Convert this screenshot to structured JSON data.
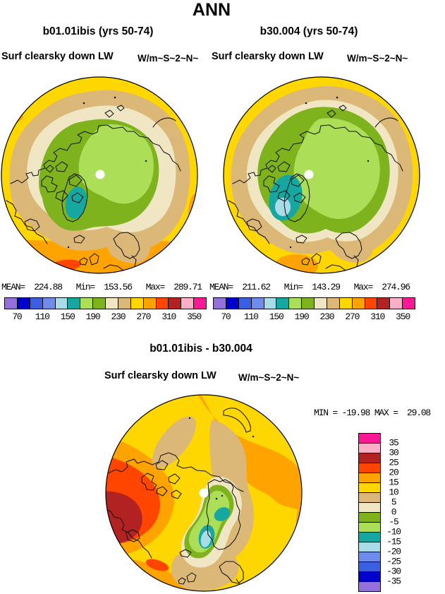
{
  "page_title": "ANN",
  "panels": {
    "left": {
      "title": "b01.01ibis (yrs 50-74)",
      "field": "Surf clearsky down LW",
      "units": "W/m~S~2~N~",
      "stats": "MEAN=  224.88   Min=  153.56   Max=  289.71"
    },
    "right": {
      "title": "b30.004 (yrs 50-74)",
      "field": "Surf clearsky down LW",
      "units": "W/m~S~2~N~",
      "stats": "MEAN=  211.62   Min=  143.29   Max=  274.96"
    },
    "diff": {
      "title": "b01.01ibis - b30.004",
      "field": "Surf clearsky down LW",
      "units": "W/m~S~2~N~",
      "minmax": "MIN = -19.98 MAX =  29.08"
    }
  },
  "colorbar": {
    "colors_low_to_high": [
      "#9470DB",
      "#0000CD",
      "#3A5FE0",
      "#6E8CEC",
      "#A8DCE8",
      "#16A8A0",
      "#ACDE58",
      "#7FB31E",
      "#F0E6C4",
      "#DBB878",
      "#FFD700",
      "#FFA300",
      "#FF4500",
      "#B22222",
      "#FFAEC8",
      "#FA1895"
    ],
    "h_tick_labels": [
      "70",
      "110",
      "150",
      "190",
      "230",
      "270",
      "310",
      "350"
    ],
    "v_tick_labels": [
      "35",
      "30",
      "25",
      "20",
      "15",
      "10",
      "5",
      "0",
      "-5",
      "-10",
      "-15",
      "-20",
      "-25",
      "-30",
      "-35"
    ]
  },
  "chart_data": [
    {
      "type": "heatmap",
      "variant": "north-polar-stereographic filled-contour map",
      "season": "ANN",
      "title": "b01.01ibis (yrs 50-74)",
      "variable": "Surf clearsky down LW",
      "units": "W/m~S~2~N~",
      "mean": 224.88,
      "min": 153.56,
      "max": 289.71,
      "contour_levels": [
        70,
        90,
        110,
        130,
        150,
        170,
        190,
        210,
        230,
        250,
        270,
        290,
        310,
        330,
        350
      ],
      "labeled_levels": [
        70,
        110,
        150,
        190,
        230,
        270,
        310,
        350
      ],
      "palette_low_to_high": [
        "#9470DB",
        "#0000CD",
        "#3A5FE0",
        "#6E8CEC",
        "#A8DCE8",
        "#16A8A0",
        "#ACDE58",
        "#7FB31E",
        "#F0E6C4",
        "#DBB878",
        "#FFD700",
        "#FFA300",
        "#FF4500",
        "#B22222",
        "#FFAEC8",
        "#FA1895"
      ],
      "legend_position": "bottom-horizontal"
    },
    {
      "type": "heatmap",
      "variant": "north-polar-stereographic filled-contour map",
      "season": "ANN",
      "title": "b30.004 (yrs 50-74)",
      "variable": "Surf clearsky down LW",
      "units": "W/m~S~2~N~",
      "mean": 211.62,
      "min": 143.29,
      "max": 274.96,
      "contour_levels": [
        70,
        90,
        110,
        130,
        150,
        170,
        190,
        210,
        230,
        250,
        270,
        290,
        310,
        330,
        350
      ],
      "labeled_levels": [
        70,
        110,
        150,
        190,
        230,
        270,
        310,
        350
      ],
      "palette_low_to_high": [
        "#9470DB",
        "#0000CD",
        "#3A5FE0",
        "#6E8CEC",
        "#A8DCE8",
        "#16A8A0",
        "#ACDE58",
        "#7FB31E",
        "#F0E6C4",
        "#DBB878",
        "#FFD700",
        "#FFA300",
        "#FF4500",
        "#B22222",
        "#FFAEC8",
        "#FA1895"
      ],
      "legend_position": "bottom-horizontal"
    },
    {
      "type": "heatmap",
      "variant": "north-polar-stereographic filled-contour difference map",
      "season": "ANN",
      "title": "b01.01ibis - b30.004",
      "variable": "Surf clearsky down LW",
      "units": "W/m~S~2~N~",
      "min": -19.98,
      "max": 29.08,
      "contour_levels": [
        -35,
        -30,
        -25,
        -20,
        -15,
        -10,
        -5,
        0,
        5,
        10,
        15,
        20,
        25,
        30,
        35
      ],
      "labeled_levels": [
        -35,
        -30,
        -25,
        -20,
        -15,
        -10,
        -5,
        0,
        5,
        10,
        15,
        20,
        25,
        30,
        35
      ],
      "palette_low_to_high": [
        "#9470DB",
        "#0000CD",
        "#3A5FE0",
        "#6E8CEC",
        "#A8DCE8",
        "#16A8A0",
        "#ACDE58",
        "#7FB31E",
        "#F0E6C4",
        "#DBB878",
        "#FFD700",
        "#FFA300",
        "#FF4500",
        "#B22222",
        "#FFAEC8",
        "#FA1895"
      ],
      "legend_position": "right-vertical"
    }
  ]
}
